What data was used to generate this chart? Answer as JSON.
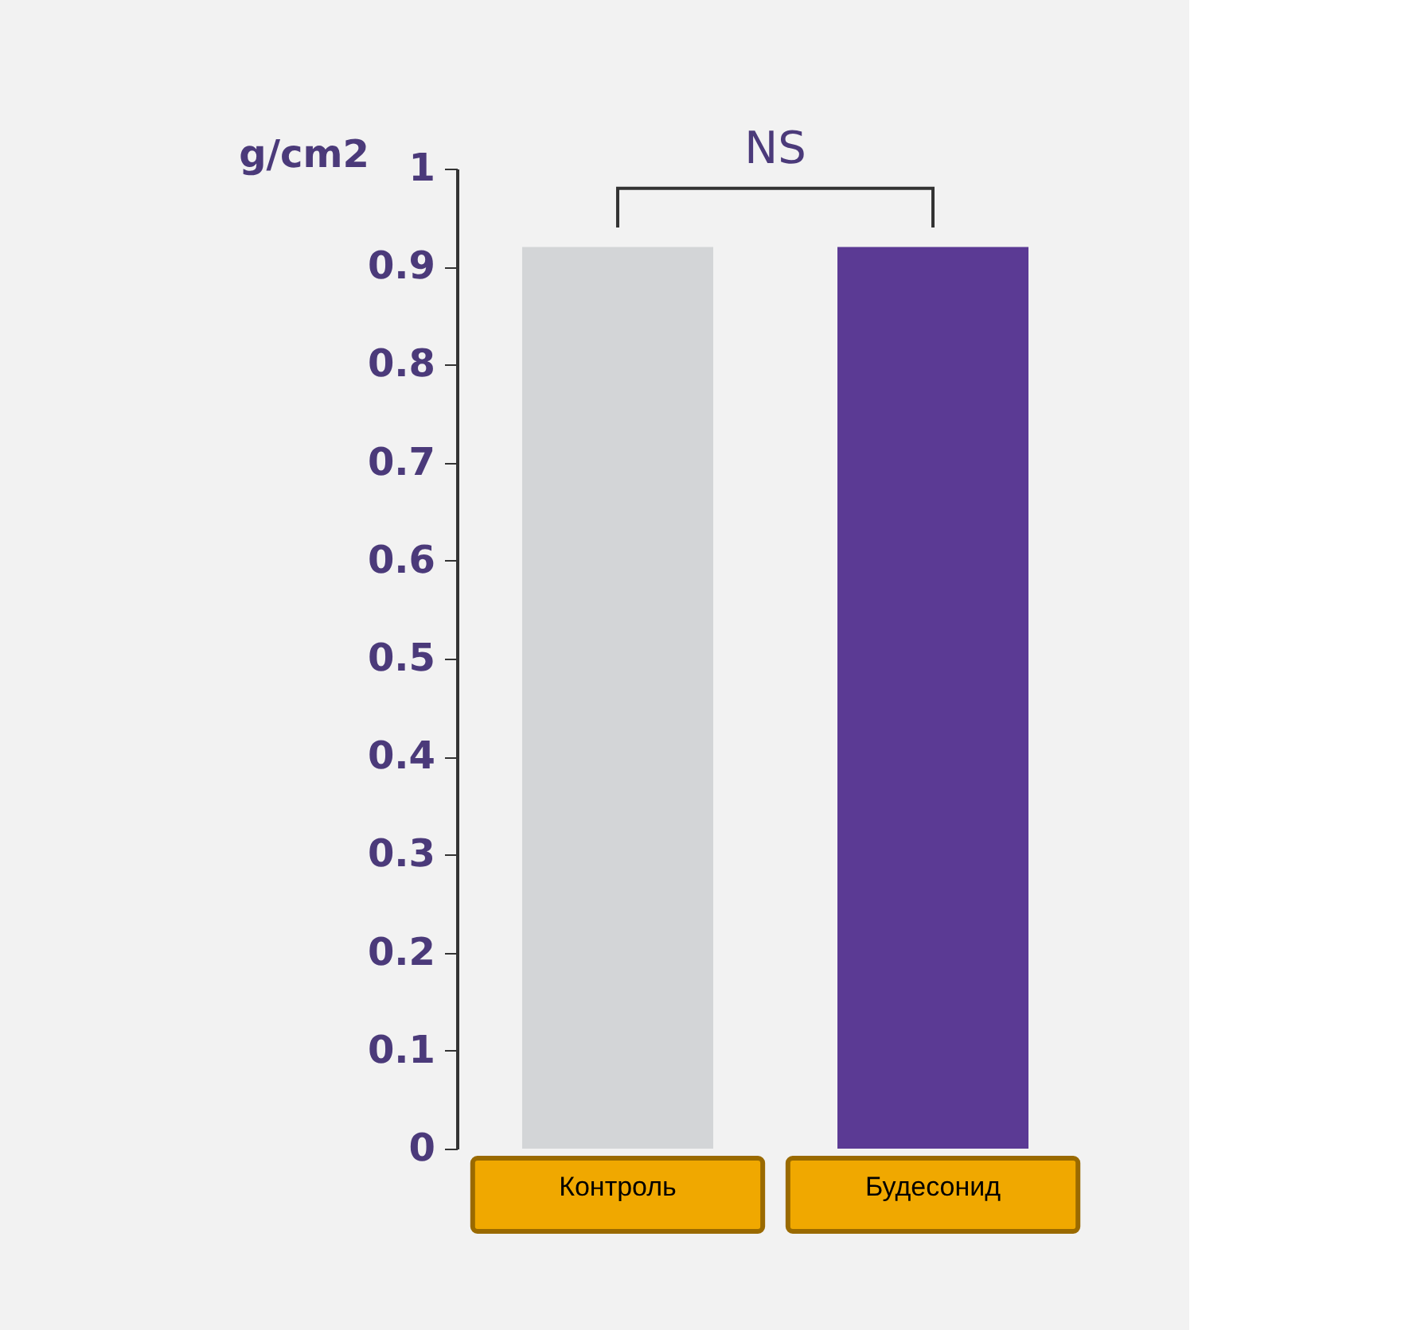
{
  "chart_data": {
    "type": "bar",
    "ylabel": "g/cm2",
    "categories": [
      "Контроль",
      "Будесонид"
    ],
    "values": [
      0.92,
      0.92
    ],
    "colors": [
      "#d3d5d7",
      "#5b3a94"
    ],
    "ylim": [
      0,
      1
    ],
    "yticks": [
      0,
      0.1,
      0.2,
      0.3,
      0.4,
      0.5,
      0.6,
      0.7,
      0.8,
      0.9,
      1
    ],
    "grid": false,
    "annotations": [
      "NS"
    ]
  }
}
